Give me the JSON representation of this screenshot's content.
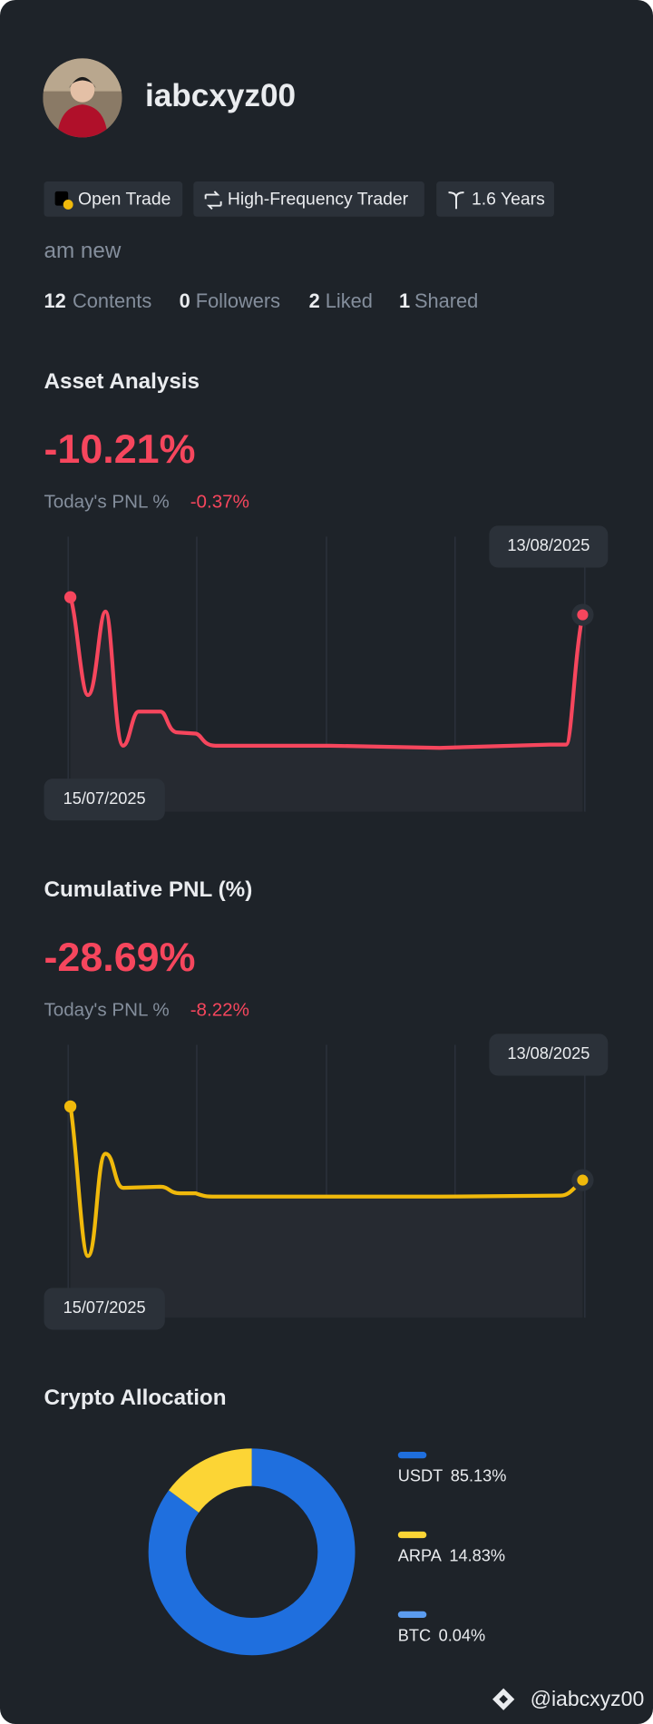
{
  "profile": {
    "username": "iabcxyz00",
    "tags": [
      "Open Trade",
      "High-Frequency Trader",
      "1.6 Years"
    ],
    "bio": "am new",
    "stats": [
      {
        "count": 12,
        "label": "Contents"
      },
      {
        "count": 0,
        "label": "Followers"
      },
      {
        "count": 2,
        "label": "Liked"
      },
      {
        "count": 1,
        "label": "Shared"
      }
    ]
  },
  "asset_analysis": {
    "title": "Asset Analysis",
    "value": "-10.21%",
    "today_label": "Today's PNL %",
    "today_value": "-0.37%",
    "start_date": "15/07/2025",
    "end_date": "13/08/2025"
  },
  "cumulative_pnl": {
    "title": "Cumulative PNL (%)",
    "value": "-28.69%",
    "today_label": "Today's PNL %",
    "today_value": "-8.22%",
    "start_date": "15/07/2025",
    "end_date": "13/08/2025"
  },
  "crypto_allocation": {
    "title": "Crypto Allocation",
    "items": [
      {
        "name": "USDT",
        "value": 85.13,
        "value_label": "85.13%",
        "color": "#1f6fde"
      },
      {
        "name": "ARPA",
        "value": 14.83,
        "value_label": "14.83%",
        "color": "#fcd535"
      },
      {
        "name": "BTC",
        "value": 0.04,
        "value_label": "0.04%",
        "color": "#5b9cf0"
      }
    ]
  },
  "watermark": "@iabcxyz00"
}
